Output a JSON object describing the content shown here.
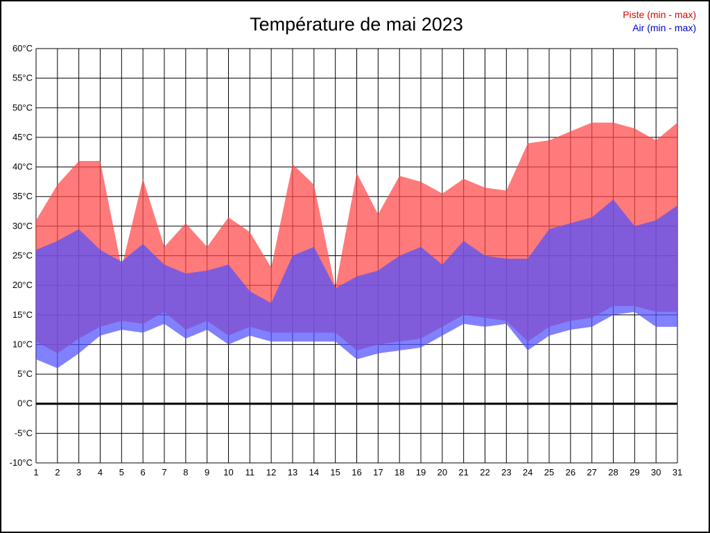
{
  "header": {
    "title": "Température de mai 2023"
  },
  "legend": {
    "piste_label": "Piste (min - max)",
    "air_label": "Air (min - max)",
    "piste_color": "#e00000",
    "air_color": "#0000d0"
  },
  "chart_data": {
    "type": "area",
    "title": "Température de mai 2023",
    "xlabel": "",
    "ylabel": "",
    "ylim": [
      -10,
      60
    ],
    "ytick_step": 5,
    "y_suffix": "°C",
    "grid": true,
    "legend_position": "top-right",
    "x": [
      1,
      2,
      3,
      4,
      5,
      6,
      7,
      8,
      9,
      10,
      11,
      12,
      13,
      14,
      15,
      16,
      17,
      18,
      19,
      20,
      21,
      22,
      23,
      24,
      25,
      26,
      27,
      28,
      29,
      30,
      31
    ],
    "series": [
      {
        "name": "Piste (min - max)",
        "fill": "rgba(255,70,70,0.72)",
        "max": [
          31,
          37,
          41,
          41,
          23,
          38,
          26.5,
          30.5,
          26.5,
          31.5,
          29,
          23,
          40.5,
          37,
          19.5,
          39,
          32,
          38.5,
          37.5,
          35.5,
          38,
          36.5,
          36,
          44,
          44.5,
          46,
          47.5,
          47.5,
          46.5,
          44.5,
          47.5
        ],
        "min": [
          10.5,
          8.5,
          11,
          13,
          14,
          13.5,
          15.5,
          12.5,
          14,
          11.5,
          13,
          12,
          12,
          12,
          12,
          9,
          10,
          10.5,
          11,
          13,
          15,
          14.5,
          14,
          10.5,
          13,
          14,
          14.5,
          16.5,
          16.5,
          15.5,
          15.5
        ]
      },
      {
        "name": "Air (min - max)",
        "fill": "rgba(80,80,255,0.72)",
        "max": [
          26,
          27.5,
          29.5,
          26,
          24,
          27,
          23.5,
          22,
          22.5,
          23.5,
          19,
          17,
          25,
          26.5,
          19.5,
          21.5,
          22.5,
          25,
          26.5,
          23.5,
          27.5,
          25,
          24.5,
          24.5,
          29.5,
          30.5,
          31.5,
          34.5,
          30,
          31,
          33.5
        ],
        "min": [
          7.5,
          6,
          8.5,
          11.5,
          12.5,
          12,
          13.5,
          11,
          12.5,
          10,
          11.5,
          10.5,
          10.5,
          10.5,
          10.5,
          7.5,
          8.5,
          9,
          9.5,
          11.5,
          13.5,
          13,
          13.5,
          9,
          11.5,
          12.5,
          13,
          15,
          15.5,
          13,
          13
        ]
      }
    ]
  }
}
